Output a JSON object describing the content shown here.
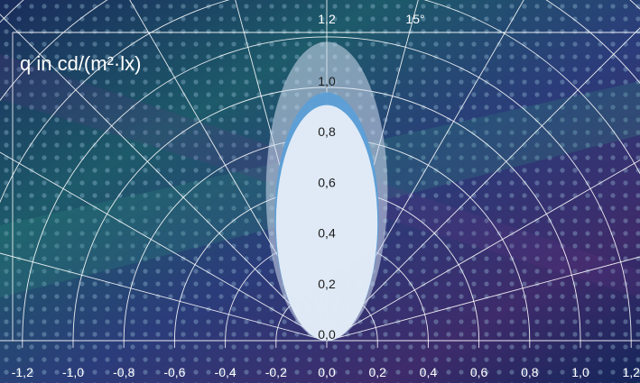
{
  "chart_data": {
    "type": "polar",
    "ylabel": "q in cd/(m²·lx)",
    "x_ticks": [
      "-1,2",
      "-1,0",
      "-0,8",
      "-0,6",
      "-0,4",
      "-0,2",
      "0,0",
      "0,2",
      "0,4",
      "0,6",
      "0,8",
      "1,0",
      "1,2"
    ],
    "radial_ticks": [
      "0,0",
      "0,2",
      "0,4",
      "0,6",
      "0,8",
      "1,0",
      "1,2"
    ],
    "top_labels": [
      "1,2",
      "15°"
    ],
    "angle_step_deg": 15,
    "rlim": [
      0,
      1.2
    ],
    "grid": true,
    "series": [
      {
        "values": {
          "half_width": 0.24,
          "height": 1.18
        },
        "color": "#d3dff0"
      },
      {
        "values": {
          "half_width": 0.205,
          "height": 0.98
        },
        "color": "#5a9fd8"
      },
      {
        "values": {
          "half_width": 0.2,
          "height": 0.93
        },
        "color": "#eaf0f8"
      }
    ]
  },
  "colors": {
    "background_dark": "#0d1f3a",
    "background_teal": "#1d5a6a",
    "background_purple": "#3e2b6b",
    "grid": "#ffffff"
  }
}
